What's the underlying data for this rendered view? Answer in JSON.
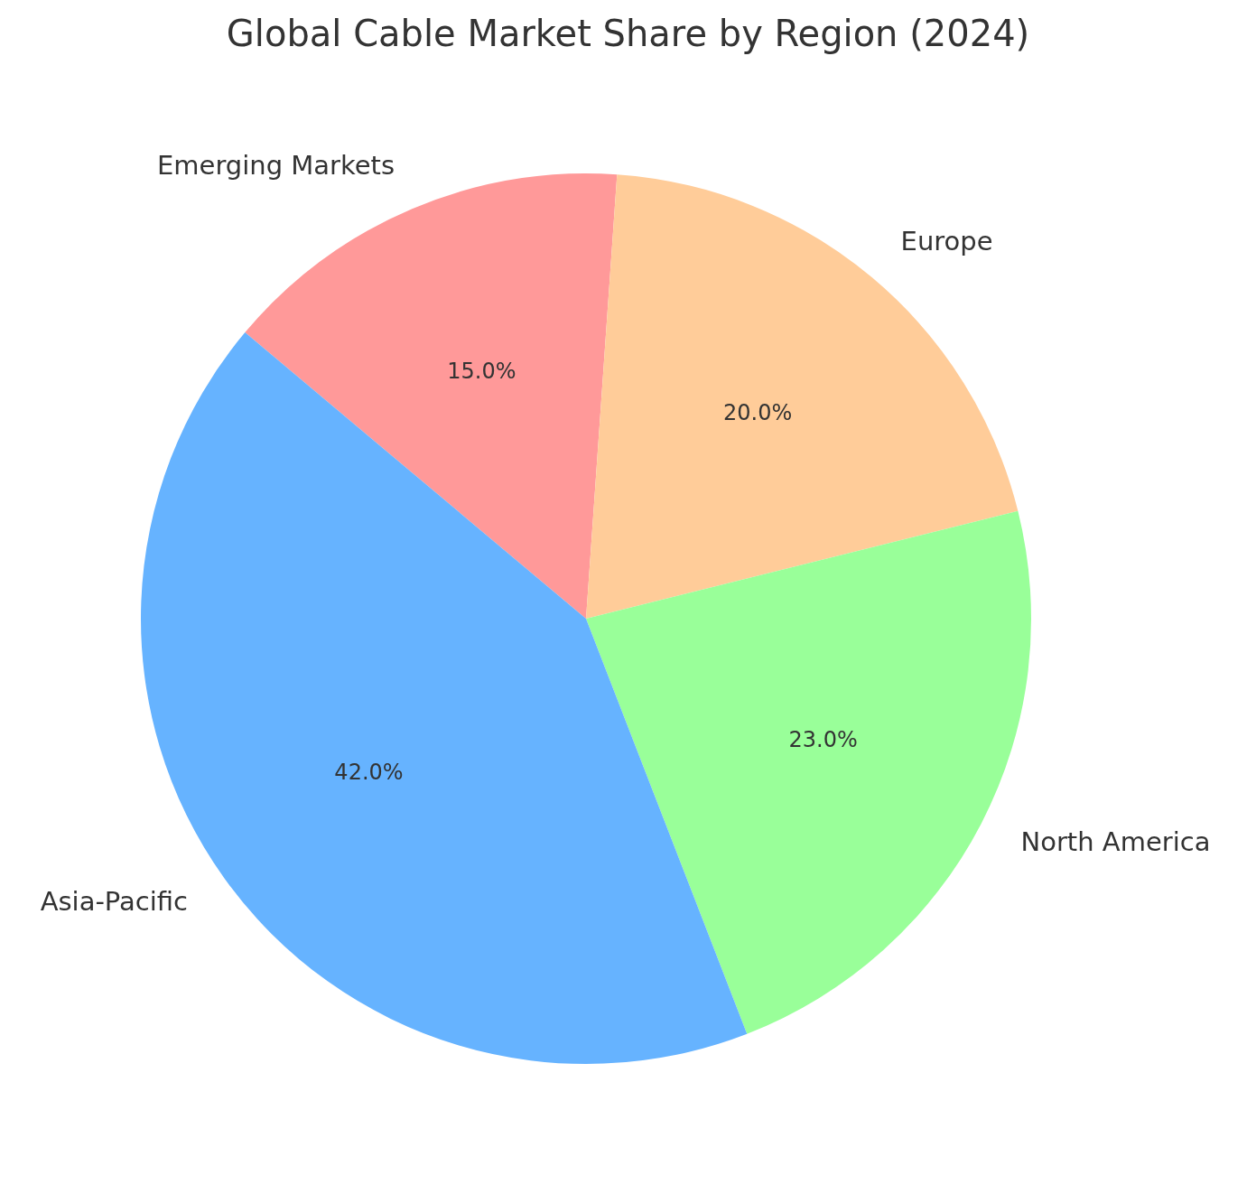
{
  "chart_data": {
    "type": "pie",
    "title": "Global Cable Market Share by Region (2024)",
    "categories": [
      "Asia-Pacific",
      "North America",
      "Europe",
      "Emerging Markets"
    ],
    "values": [
      42,
      23,
      20,
      15
    ],
    "colors": [
      "#66b3ff",
      "#99ff99",
      "#ffcc99",
      "#ff9999"
    ],
    "value_labels": [
      "42.0%",
      "23.0%",
      "20.0%",
      "15.0%"
    ],
    "legend": false
  }
}
